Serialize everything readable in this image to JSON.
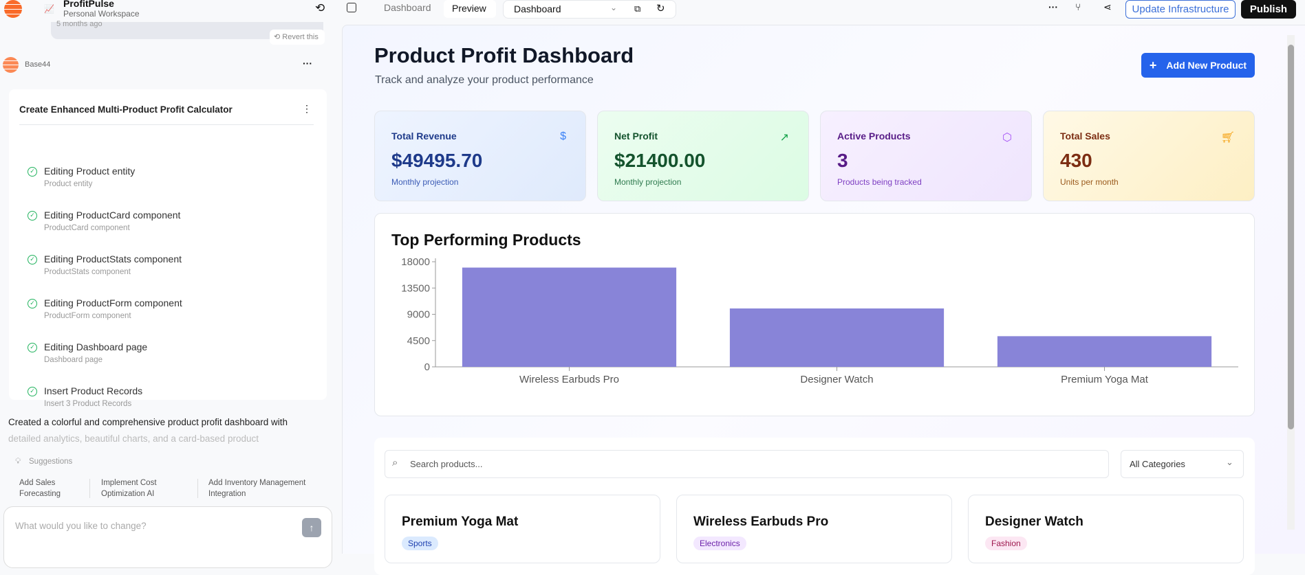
{
  "header": {
    "app_name": "ProfitPulse",
    "workspace": "Personal Workspace",
    "tab_dashboard": "Dashboard",
    "tab_preview": "Preview",
    "page_select": "Dashboard",
    "update_btn": "Update Infrastructure",
    "publish_btn": "Publish"
  },
  "sidebar": {
    "prev_time": "5 months ago",
    "revert": "Revert this",
    "author": "Base44",
    "task_title": "Create Enhanced Multi-Product Profit Calculator",
    "tasks": [
      {
        "title": "Editing Product entity",
        "sub": "Product entity"
      },
      {
        "title": "Editing ProductCard component",
        "sub": "ProductCard component"
      },
      {
        "title": "Editing ProductStats component",
        "sub": "ProductStats component"
      },
      {
        "title": "Editing ProductForm component",
        "sub": "ProductForm component"
      },
      {
        "title": "Editing Dashboard page",
        "sub": "Dashboard page"
      },
      {
        "title": "Insert Product Records",
        "sub": "Insert 3 Product Records"
      }
    ],
    "message_line1": "Created a colorful and comprehensive product profit dashboard with",
    "message_line2": "detailed analytics, beautiful charts, and a card-based product",
    "suggestions_label": "Suggestions",
    "suggestions": [
      "Add Sales Forecasting",
      "Implement Cost Optimization AI",
      "Add Inventory Management Integration"
    ],
    "input_placeholder": "What would you like to change?"
  },
  "main": {
    "title": "Product Profit Dashboard",
    "subtitle": "Track and analyze your product performance",
    "add_btn": "Add New Product",
    "stats": [
      {
        "title": "Total Revenue",
        "value": "$49495.70",
        "sub": "Monthly projection",
        "icon": "dollar-icon",
        "color": "#1e3a8a"
      },
      {
        "title": "Net Profit",
        "value": "$21400.00",
        "sub": "Monthly projection",
        "icon": "trending-up-icon",
        "color": "#14532d"
      },
      {
        "title": "Active Products",
        "value": "3",
        "sub": "Products being tracked",
        "icon": "package-icon",
        "color": "#581c87"
      },
      {
        "title": "Total Sales",
        "value": "430",
        "sub": "Units per month",
        "icon": "cart-icon",
        "color": "#7c2d12"
      }
    ],
    "search_placeholder": "Search products...",
    "category_select": "All Categories",
    "products": [
      {
        "name": "Premium Yoga Mat",
        "category": "Sports"
      },
      {
        "name": "Wireless Earbuds Pro",
        "category": "Electronics"
      },
      {
        "name": "Designer Watch",
        "category": "Fashion"
      }
    ]
  },
  "chart_data": {
    "type": "bar",
    "title": "Top Performing Products",
    "categories": [
      "Wireless Earbuds Pro",
      "Designer Watch",
      "Premium Yoga Mat"
    ],
    "values": [
      17000,
      10000,
      5250
    ],
    "yticks": [
      "0",
      "4500",
      "9000",
      "13500",
      "18000"
    ],
    "ylim": [
      0,
      18000
    ],
    "grid": false,
    "bar_color": "#8884d8"
  }
}
